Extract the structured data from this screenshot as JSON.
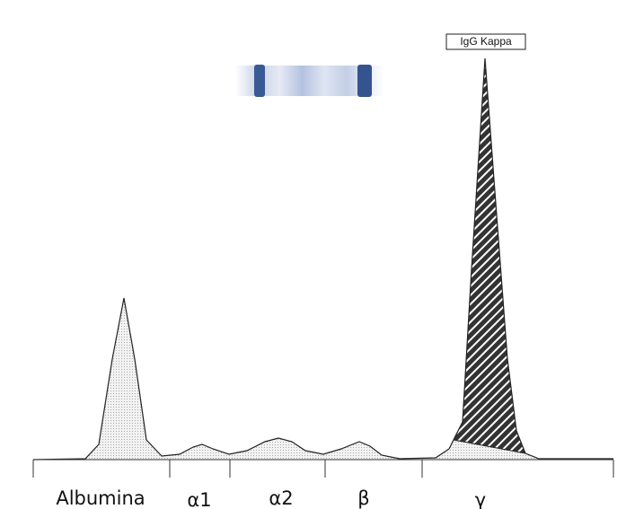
{
  "annotation": "IgG Kappa",
  "fractions": [
    "Albumina",
    "α1",
    "α2",
    "β",
    "γ"
  ]
}
